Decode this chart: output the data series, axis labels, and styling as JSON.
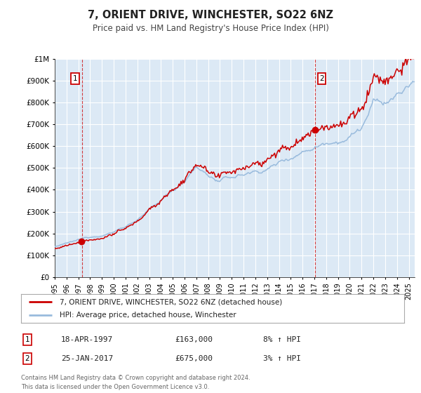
{
  "title": "7, ORIENT DRIVE, WINCHESTER, SO22 6NZ",
  "subtitle": "Price paid vs. HM Land Registry's House Price Index (HPI)",
  "background_color": "#ffffff",
  "plot_bg_color": "#dce9f5",
  "grid_color": "#ffffff",
  "red_line_color": "#cc0000",
  "blue_line_color": "#99bbdd",
  "sale1": {
    "date_year": 1997.296,
    "price": 163000,
    "label": "1",
    "hpi_pct": "8% ↑ HPI",
    "date_str": "18-APR-1997"
  },
  "sale2": {
    "date_year": 2017.069,
    "price": 675000,
    "label": "2",
    "hpi_pct": "3% ↑ HPI",
    "date_str": "25-JAN-2017"
  },
  "xmin": 1995.0,
  "xmax": 2025.5,
  "ymin": 0,
  "ymax": 1000000,
  "yticks": [
    0,
    100000,
    200000,
    300000,
    400000,
    500000,
    600000,
    700000,
    800000,
    900000,
    1000000
  ],
  "ytick_labels": [
    "£0",
    "£100K",
    "£200K",
    "£300K",
    "£400K",
    "£500K",
    "£600K",
    "£700K",
    "£800K",
    "£900K",
    "£1M"
  ],
  "xticks": [
    1995,
    1996,
    1997,
    1998,
    1999,
    2000,
    2001,
    2002,
    2003,
    2004,
    2005,
    2006,
    2007,
    2008,
    2009,
    2010,
    2011,
    2012,
    2013,
    2014,
    2015,
    2016,
    2017,
    2018,
    2019,
    2020,
    2021,
    2022,
    2023,
    2024,
    2025
  ],
  "legend_label_red": "7, ORIENT DRIVE, WINCHESTER, SO22 6NZ (detached house)",
  "legend_label_blue": "HPI: Average price, detached house, Winchester",
  "footer1": "Contains HM Land Registry data © Crown copyright and database right 2024.",
  "footer2": "This data is licensed under the Open Government Licence v3.0."
}
